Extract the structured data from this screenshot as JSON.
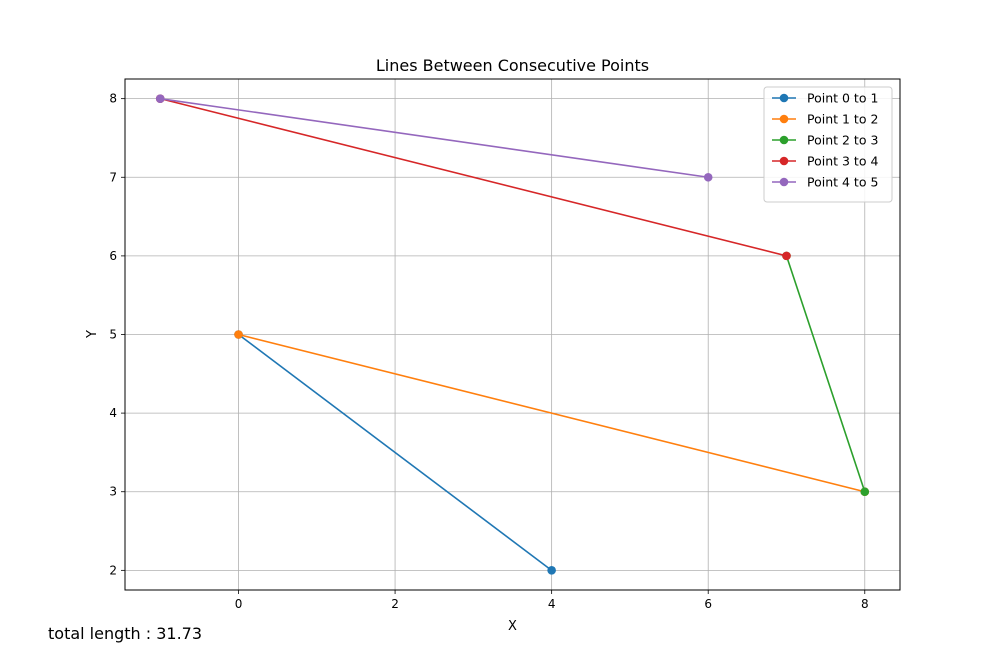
{
  "chart_data": {
    "type": "line",
    "title": "Lines Between Consecutive Points",
    "xlabel": "X",
    "ylabel": "Y",
    "xlim": [
      -1.45,
      8.45
    ],
    "ylim": [
      1.75,
      8.25
    ],
    "xticks": [
      0,
      2,
      4,
      6,
      8
    ],
    "yticks": [
      2,
      3,
      4,
      5,
      6,
      7,
      8
    ],
    "grid": true,
    "legend_position": "top-right",
    "series": [
      {
        "name": "Point 0 to 1",
        "color": "#1f77b4",
        "points": [
          [
            4,
            2
          ],
          [
            0,
            5
          ]
        ]
      },
      {
        "name": "Point 1 to 2",
        "color": "#ff7f0e",
        "points": [
          [
            0,
            5
          ],
          [
            8,
            3
          ]
        ]
      },
      {
        "name": "Point 2 to 3",
        "color": "#2ca02c",
        "points": [
          [
            8,
            3
          ],
          [
            7,
            6
          ]
        ]
      },
      {
        "name": "Point 3 to 4",
        "color": "#d62728",
        "points": [
          [
            7,
            6
          ],
          [
            -1,
            8
          ]
        ]
      },
      {
        "name": "Point 4 to 5",
        "color": "#9467bd",
        "points": [
          [
            -1,
            8
          ],
          [
            6,
            7
          ]
        ]
      }
    ]
  },
  "footer": {
    "total_length_label": "total length : 31.73"
  }
}
